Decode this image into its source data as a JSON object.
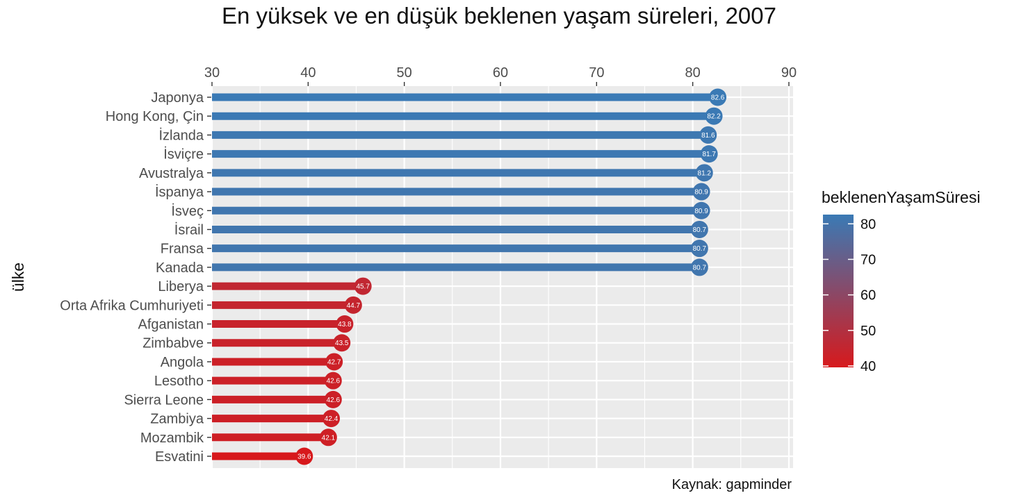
{
  "chart_data": {
    "type": "bar",
    "title": "En yüksek ve en düşük beklenen yaşam süreleri, 2007",
    "xlabel": "",
    "ylabel": "ülke",
    "caption": "Kaynak: gapminder",
    "xlim": [
      30,
      90
    ],
    "x_ticks": [
      30,
      40,
      50,
      60,
      70,
      80,
      90
    ],
    "x_axis_position": "top",
    "grid": true,
    "legend": {
      "title": "beklenenYaşamSüresi",
      "placement": "right",
      "ticks": [
        80,
        70,
        60,
        50,
        40
      ],
      "range": [
        39.6,
        82.6
      ],
      "color_low": "#d7191c",
      "color_high": "#3a7ab5"
    },
    "categories": [
      "Japonya",
      "Hong Kong, Çin",
      "İzlanda",
      "İsviçre",
      "Avustralya",
      "İspanya",
      "İsveç",
      "İsrail",
      "Fransa",
      "Kanada",
      "Liberya",
      "Orta Afrika Cumhuriyeti",
      "Afganistan",
      "Zimbabve",
      "Angola",
      "Lesotho",
      "Sierra Leone",
      "Zambiya",
      "Mozambik",
      "Esvatini"
    ],
    "values": [
      82.6,
      82.2,
      81.6,
      81.7,
      81.2,
      80.9,
      80.9,
      80.7,
      80.7,
      80.7,
      45.7,
      44.7,
      43.8,
      43.5,
      42.7,
      42.6,
      42.6,
      42.4,
      42.1,
      39.6
    ],
    "colors": {
      "high_group": "#3f78b4",
      "low_group": "#d42a28",
      "panel": "#ebebeb",
      "grid": "#ffffff"
    }
  }
}
